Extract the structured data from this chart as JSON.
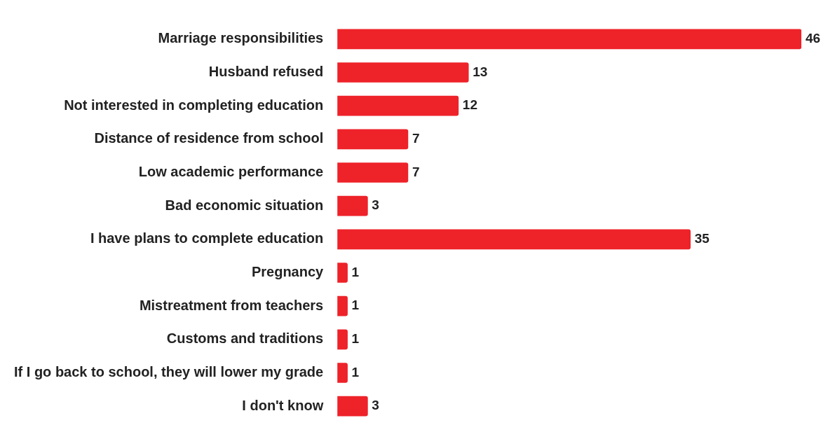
{
  "chart_data": {
    "type": "bar",
    "orientation": "horizontal",
    "categories": [
      "Marriage responsibilities",
      "Husband refused",
      "Not interested in completing education",
      "Distance of residence from school",
      "Low academic performance",
      "Bad economic situation",
      "I have plans to complete education",
      "Pregnancy",
      "Mistreatment from teachers",
      "Customs and traditions",
      "If I go back to school, they will lower my grade",
      "I don't know"
    ],
    "values": [
      46,
      13,
      12,
      7,
      7,
      3,
      35,
      1,
      1,
      1,
      1,
      3
    ],
    "color": "#ee2229",
    "data_labels": true,
    "legend": false
  }
}
